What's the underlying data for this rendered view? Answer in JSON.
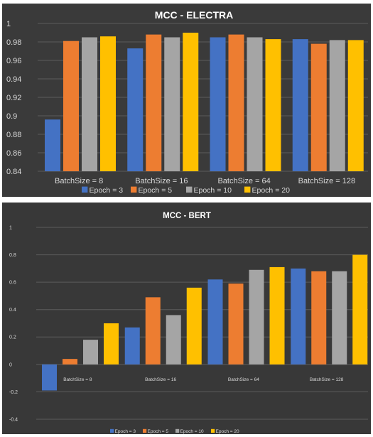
{
  "chart_data": [
    {
      "type": "bar",
      "title": "MCC - ELECTRA",
      "categories": [
        "BatchSize = 8",
        "BatchSize = 16",
        "BatchSize = 64",
        "BatchSize = 128"
      ],
      "series": [
        {
          "name": "Epoch = 3",
          "values": [
            0.896,
            0.973,
            0.985,
            0.983
          ]
        },
        {
          "name": "Epoch = 5",
          "values": [
            0.981,
            0.988,
            0.988,
            0.978
          ]
        },
        {
          "name": "Epoch = 10",
          "values": [
            0.985,
            0.985,
            0.985,
            0.982
          ]
        },
        {
          "name": "Epoch = 20",
          "values": [
            0.986,
            0.99,
            0.983,
            0.982
          ]
        }
      ],
      "ylim": [
        0.84,
        1.0
      ],
      "yticks": [
        0.84,
        0.86,
        0.88,
        0.9,
        0.92,
        0.94,
        0.96,
        0.98,
        1
      ],
      "ytick_labels": [
        "0.84",
        "0.86",
        "0.88",
        "0.9",
        "0.92",
        "0.94",
        "0.96",
        "0.98",
        "1"
      ],
      "colors": [
        "#4472C4",
        "#ED7D31",
        "#A5A5A5",
        "#FFC000"
      ],
      "grid": true,
      "legend": "bottom"
    },
    {
      "type": "bar",
      "title": "MCC - BERT",
      "categories": [
        "BatchSize = 8",
        "BatchSize = 16",
        "BatchSize = 64",
        "BatchSize = 128"
      ],
      "series": [
        {
          "name": "Epoch = 3",
          "values": [
            -0.19,
            0.27,
            0.62,
            0.7
          ]
        },
        {
          "name": "Epoch = 5",
          "values": [
            0.04,
            0.49,
            0.59,
            0.68
          ]
        },
        {
          "name": "Epoch = 10",
          "values": [
            0.18,
            0.36,
            0.69,
            0.68
          ]
        },
        {
          "name": "Epoch = 20",
          "values": [
            0.3,
            0.56,
            0.71,
            0.8
          ]
        }
      ],
      "ylim": [
        -0.4,
        1.0
      ],
      "yticks": [
        -0.4,
        -0.2,
        0,
        0.2,
        0.4,
        0.6,
        0.8,
        1
      ],
      "ytick_labels": [
        "-0.4",
        "-0.2",
        "0",
        "0.2",
        "0.4",
        "0.6",
        "0.8",
        "1"
      ],
      "colors": [
        "#4472C4",
        "#ED7D31",
        "#A5A5A5",
        "#FFC000"
      ],
      "grid": true,
      "legend": "bottom"
    }
  ]
}
